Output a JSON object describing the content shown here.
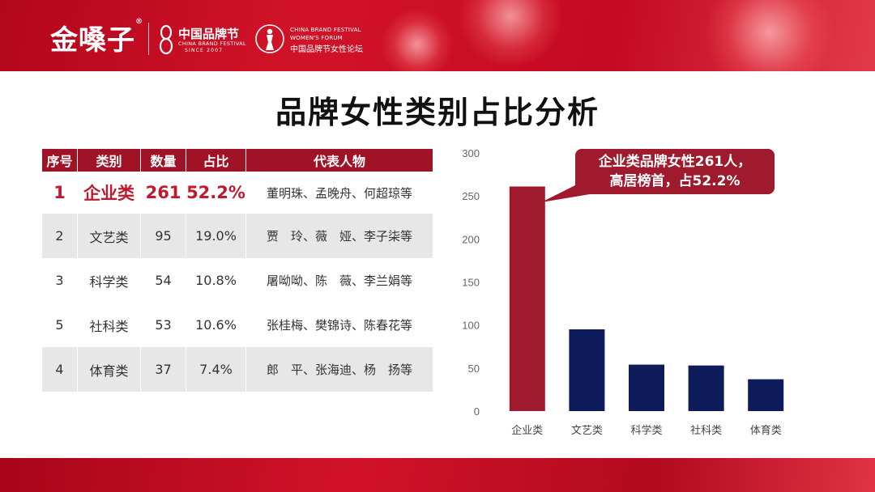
{
  "header": {
    "logo_text": "金嗓子",
    "logo_reg": "®",
    "festival_cn": "中国品牌节",
    "festival_en": "CHINA BRAND FESTIVAL",
    "festival_since": "SINCE 2007",
    "forum_line1": "CHINA BRAND FESTIVAL",
    "forum_line2": "WOMEN'S FORUM",
    "forum_line3": "中国品牌节女性论坛"
  },
  "title": "品牌女性类别占比分析",
  "table": {
    "headers": [
      "序号",
      "类别",
      "数量",
      "占比",
      "代表人物"
    ],
    "rows": [
      [
        "1",
        "企业类",
        "261",
        "52.2%",
        "董明珠、孟晚舟、何超琼等"
      ],
      [
        "2",
        "文艺类",
        "95",
        "19.0%",
        "贾　玲、薇　娅、李子柒等"
      ],
      [
        "3",
        "科学类",
        "54",
        "10.8%",
        "屠呦呦、陈　薇、李兰娟等"
      ],
      [
        "5",
        "社科类",
        "53",
        "10.6%",
        "张桂梅、樊锦诗、陈春花等"
      ],
      [
        "4",
        "体育类",
        "37",
        "7.4%",
        "郎　平、张海迪、杨　扬等"
      ]
    ]
  },
  "callout": {
    "line1": "企业类品牌女性261人，",
    "line2": "高居榜首，占52.2%"
  },
  "colors": {
    "header_red": "#c40a23",
    "table_header": "#a01327",
    "highlight_text": "#c0192f",
    "bar_highlight": "#9e1a2c",
    "bar_default": "#0f1c5c",
    "callout_bg": "#9e1a2c"
  },
  "chart_data": {
    "type": "bar",
    "categories": [
      "企业类",
      "文艺类",
      "科学类",
      "社科类",
      "体育类"
    ],
    "values": [
      261,
      95,
      54,
      53,
      37
    ],
    "ylim": [
      0,
      300
    ],
    "yticks": [
      0,
      50,
      100,
      150,
      200,
      250,
      300
    ],
    "grid": false,
    "legend": "none",
    "title": "",
    "xlabel": "",
    "ylabel": ""
  }
}
